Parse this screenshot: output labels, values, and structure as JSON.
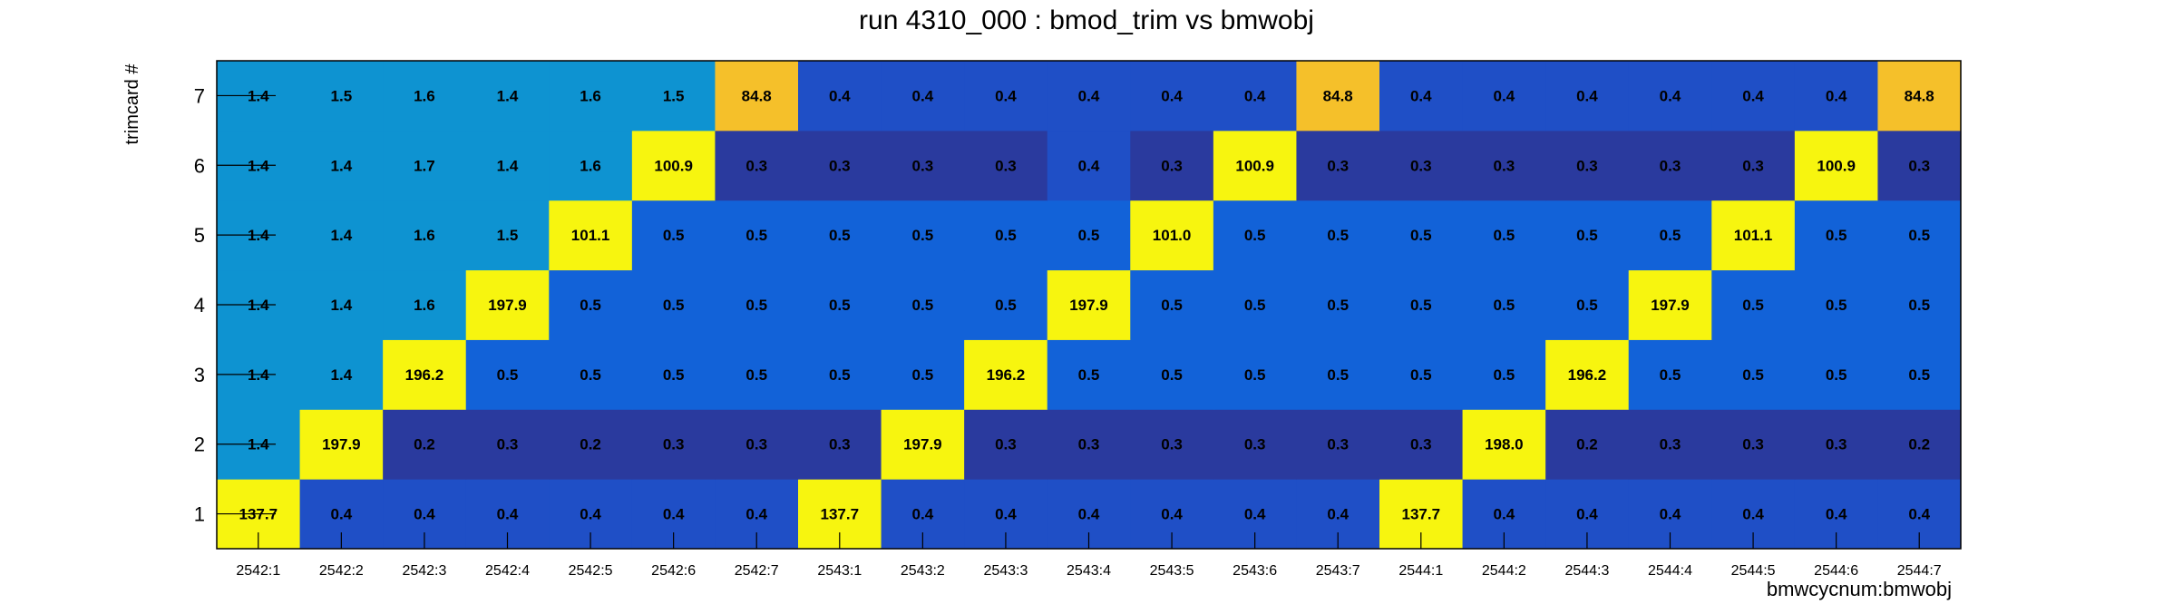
{
  "chart_data": {
    "type": "heatmap",
    "title": "run 4310_000 : bmod_trim vs bmwobj",
    "xlabel": "bmwcycnum:bmwobj",
    "ylabel": "trimcard #",
    "x_categories": [
      "2542:1",
      "2542:2",
      "2542:3",
      "2542:4",
      "2542:5",
      "2542:6",
      "2542:7",
      "2543:1",
      "2543:2",
      "2543:3",
      "2543:4",
      "2543:5",
      "2543:6",
      "2543:7",
      "2544:1",
      "2544:2",
      "2544:3",
      "2544:4",
      "2544:5",
      "2544:6",
      "2544:7"
    ],
    "y_categories": [
      "1",
      "2",
      "3",
      "4",
      "5",
      "6",
      "7"
    ],
    "values": [
      [
        137.7,
        0.4,
        0.4,
        0.4,
        0.4,
        0.4,
        0.4,
        137.7,
        0.4,
        0.4,
        0.4,
        0.4,
        0.4,
        0.4,
        137.7,
        0.4,
        0.4,
        0.4,
        0.4,
        0.4,
        0.4
      ],
      [
        1.4,
        197.9,
        0.2,
        0.3,
        0.2,
        0.3,
        0.3,
        0.3,
        197.9,
        0.3,
        0.3,
        0.3,
        0.3,
        0.3,
        0.3,
        198.0,
        0.2,
        0.3,
        0.3,
        0.3,
        0.2
      ],
      [
        1.4,
        1.4,
        196.2,
        0.5,
        0.5,
        0.5,
        0.5,
        0.5,
        0.5,
        196.2,
        0.5,
        0.5,
        0.5,
        0.5,
        0.5,
        0.5,
        196.2,
        0.5,
        0.5,
        0.5,
        0.5
      ],
      [
        1.4,
        1.4,
        1.6,
        197.9,
        0.5,
        0.5,
        0.5,
        0.5,
        0.5,
        0.5,
        197.9,
        0.5,
        0.5,
        0.5,
        0.5,
        0.5,
        0.5,
        197.9,
        0.5,
        0.5,
        0.5
      ],
      [
        1.4,
        1.4,
        1.6,
        1.5,
        101.1,
        0.5,
        0.5,
        0.5,
        0.5,
        0.5,
        0.5,
        101.0,
        0.5,
        0.5,
        0.5,
        0.5,
        0.5,
        0.5,
        101.1,
        0.5,
        0.5
      ],
      [
        1.4,
        1.4,
        1.7,
        1.4,
        1.6,
        100.9,
        0.3,
        0.3,
        0.3,
        0.3,
        0.4,
        0.3,
        100.9,
        0.3,
        0.3,
        0.3,
        0.3,
        0.3,
        0.3,
        100.9,
        0.3
      ],
      [
        1.4,
        1.5,
        1.6,
        1.4,
        1.6,
        1.5,
        84.8,
        0.4,
        0.4,
        0.4,
        0.4,
        0.4,
        0.4,
        84.8,
        0.4,
        0.4,
        0.4,
        0.4,
        0.4,
        0.4,
        84.8
      ]
    ],
    "color_scale": [
      "#2a3a9e",
      "#1f4fc6",
      "#1262d8",
      "#1b7fd8",
      "#0e93d1",
      "#f5c02a",
      "#f7f50f"
    ],
    "grid": false,
    "legend": "none"
  }
}
